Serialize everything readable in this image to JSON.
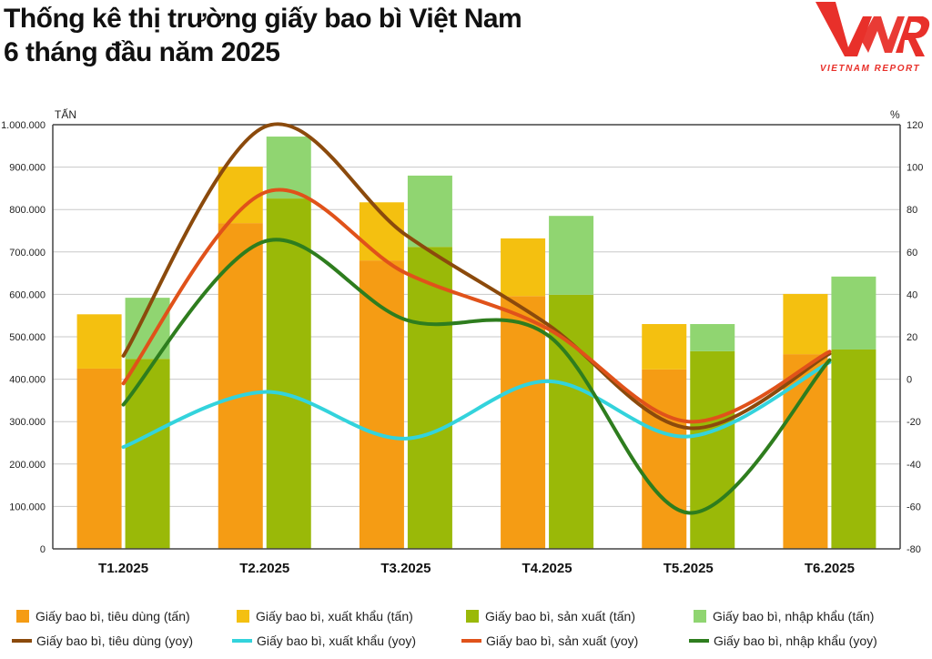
{
  "header": {
    "title_line1": "Thống kê thị trường giấy bao bì Việt Nam",
    "title_line2": "6 tháng đầu năm 2025",
    "logo_text": "VNR",
    "logo_subtitle": "VIETNAM REPORT"
  },
  "chart_data": {
    "type": "bar+line",
    "categories": [
      "T1.2025",
      "T2.2025",
      "T3.2025",
      "T4.2025",
      "T5.2025",
      "T6.2025"
    ],
    "y_left": {
      "label": "TẤN",
      "range": [
        0,
        1000000
      ],
      "ticks": [
        "0",
        "100.000",
        "200.000",
        "300.000",
        "400.000",
        "500.000",
        "600.000",
        "700.000",
        "800.000",
        "900.000",
        "1.000.000"
      ]
    },
    "y_right": {
      "label": "%",
      "range": [
        -80,
        120
      ],
      "ticks": [
        "-80",
        "-60",
        "-40",
        "-20",
        "0",
        "20",
        "40",
        "60",
        "80",
        "100",
        "120"
      ]
    },
    "grid": true,
    "legend_placement": "bottom",
    "bar_stacks": [
      {
        "segments": [
          {
            "name": "Giấy bao bì, tiêu dùng (tấn)",
            "color": "#F59C14",
            "values": [
              425000,
              768000,
              680000,
              596000,
              423000,
              459000
            ]
          },
          {
            "name": "Giấy bao bì, xuất khẩu (tấn)",
            "color": "#F4C010",
            "values": [
              128000,
              133000,
              137000,
              136000,
              107000,
              142000
            ]
          }
        ]
      },
      {
        "segments": [
          {
            "name": "Giấy bao bì, sản xuất (tấn)",
            "color": "#9AB908",
            "values": [
              448000,
              826000,
              712000,
              599000,
              466000,
              470000
            ]
          },
          {
            "name": "Giấy bao bì, nhập khẩu (tấn)",
            "color": "#90D571",
            "values": [
              144000,
              146000,
              168000,
              186000,
              64000,
              172000
            ]
          }
        ]
      }
    ],
    "line_series": [
      {
        "name": "Giấy bao bì, tiêu dùng (yoy)",
        "color": "#8B4A0C",
        "values": [
          11,
          119,
          68,
          26,
          -23,
          12
        ]
      },
      {
        "name": "Giấy bao bì, xuất khẩu (yoy)",
        "color": "#33D3DC",
        "values": [
          -32,
          -6,
          -28,
          -1,
          -27,
          8
        ]
      },
      {
        "name": "Giấy bao bì, sản xuất (yoy)",
        "color": "#E0521A",
        "values": [
          -2,
          88,
          50,
          24,
          -20,
          13
        ]
      },
      {
        "name": "Giấy bao bì, nhập khẩu (yoy)",
        "color": "#2E7D1E",
        "values": [
          -12,
          65,
          28,
          21,
          -63,
          9
        ]
      }
    ]
  }
}
